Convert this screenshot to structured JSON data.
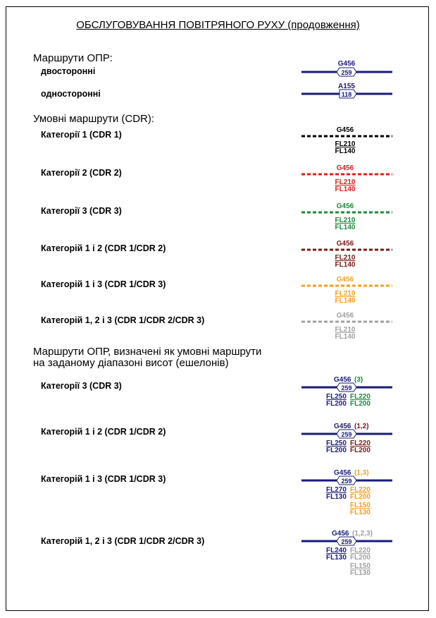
{
  "title": "ОБСЛУГОВУВАННЯ ПОВІТРЯНОГО РУХУ (продовження)",
  "sections": {
    "ats_routes": {
      "heading": "Маршрути ОПР:",
      "items": [
        {
          "label": "двосторонні",
          "route": "G456",
          "number": "259",
          "color": "#1a1a7a"
        },
        {
          "label": "односторонні",
          "route": "A155",
          "number": "118",
          "color": "#1a1a7a"
        }
      ]
    },
    "cdr_routes": {
      "heading": "Умовні маршрути (CDR):",
      "items": [
        {
          "label": "Категорії 1 (CDR 1)",
          "route": "G456",
          "upper": "FL210",
          "lower": "FL140",
          "color": "#000000"
        },
        {
          "label": "Категорії 2 (CDR 2)",
          "route": "G456",
          "upper": "FL210",
          "lower": "FL140",
          "color": "#d9201f"
        },
        {
          "label": "Категорії 3 (CDR 3)",
          "route": "G456",
          "upper": "FL210",
          "lower": "FL140",
          "color": "#1e8a3a"
        },
        {
          "label": "Категорій 1 і 2 (CDR 1/CDR 2)",
          "route": "G456",
          "upper": "FL210",
          "lower": "FL140",
          "color": "#7a1a1a"
        },
        {
          "label": "Категорій 1 і 3 (CDR 1/CDR 3)",
          "route": "G456",
          "upper": "FL210",
          "lower": "FL140",
          "color": "#f0a020"
        },
        {
          "label": "Категорій 1, 2 і 3 (CDR 1/CDR 2/CDR 3)",
          "route": "G456",
          "upper": "FL210",
          "lower": "FL140",
          "color": "#a0a0a0"
        }
      ]
    },
    "partial_cdr": {
      "heading_line1": "Маршрути ОПР, визначені як умовні маршрути",
      "heading_line2": "на заданому діапазоні висот (ешелонів)",
      "items": [
        {
          "label": "Категорії 3 (CDR 3)",
          "route": "G456",
          "cat": "(3)",
          "number": "259",
          "left": [
            "FL250",
            "FL200"
          ],
          "right": [
            "FL220",
            "FL200"
          ],
          "color": "#1e8a3a"
        },
        {
          "label": "Категорій 1 і 2 (CDR 1/CDR 2)",
          "route": "G456",
          "cat": "(1,2)",
          "number": "259",
          "left": [
            "FL250",
            "FL200"
          ],
          "right": [
            "FL220",
            "FL200"
          ],
          "color": "#7a1a1a"
        },
        {
          "label": "Категорій 1 і 3 (CDR 1/CDR 3)",
          "route": "G456",
          "cat": "(1,3)",
          "number": "259",
          "left": [
            "FL270",
            "FL130"
          ],
          "right": [
            "FL220",
            "FL200",
            "FL150",
            "FL130"
          ],
          "color": "#f0a020"
        },
        {
          "label": "Категорій 1, 2 і 3 (CDR 1/CDR 2/CDR 3)",
          "route": "G456",
          "cat": "(1,2,3)",
          "number": "259",
          "left": [
            "FL240",
            "FL130"
          ],
          "right": [
            "FL220",
            "FL200",
            "FL150",
            "FL130"
          ],
          "color": "#a0a0a0"
        }
      ]
    }
  },
  "colors": {
    "ats_blue": "#1a1a7a"
  }
}
